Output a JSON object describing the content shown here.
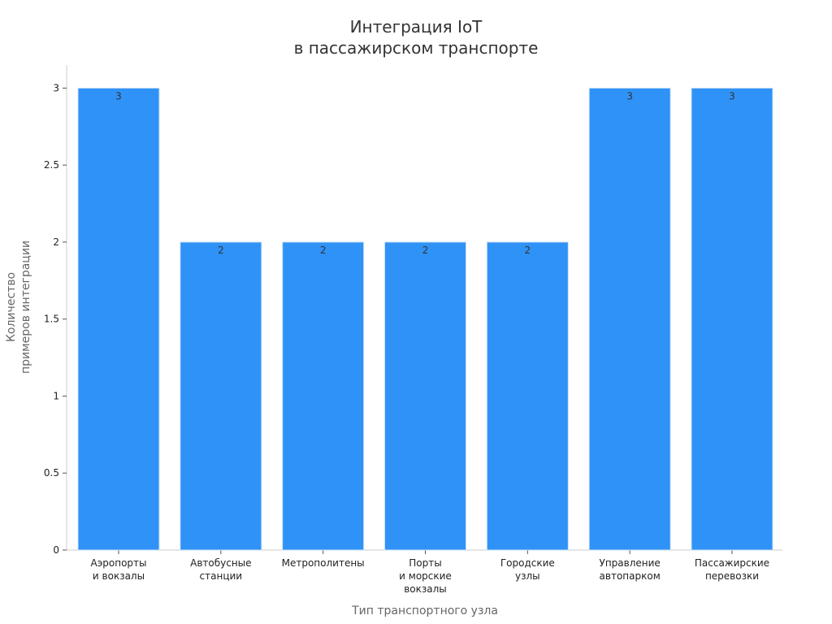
{
  "chart_data": {
    "type": "bar",
    "title": [
      "Интеграция IoT",
      "в пассажирском транспорте"
    ],
    "xlabel": "Тип транспортного узла",
    "ylabel": [
      "Количество",
      "примеров интеграции"
    ],
    "categories": [
      [
        "Аэропорты",
        "и вокзалы"
      ],
      [
        "Автобусные",
        "станции"
      ],
      [
        "Метрополитены"
      ],
      [
        "Порты",
        "и морские",
        "вокзалы"
      ],
      [
        "Городские",
        "узлы"
      ],
      [
        "Управление",
        "автопарком"
      ],
      [
        "Пассажирские",
        "перевозки"
      ]
    ],
    "values": [
      3,
      2,
      2,
      2,
      2,
      3,
      3
    ],
    "ylim": [
      0,
      3.15
    ],
    "yticks": [
      0,
      0.5,
      1,
      1.5,
      2,
      2.5,
      3
    ],
    "ytick_labels": [
      "0",
      "0.5",
      "1",
      "1.5",
      "2",
      "2.5",
      "3"
    ],
    "grid": false,
    "legend": "none",
    "bar_color": "#2f92f7",
    "bar_edge_color": "#cfe0f5"
  }
}
